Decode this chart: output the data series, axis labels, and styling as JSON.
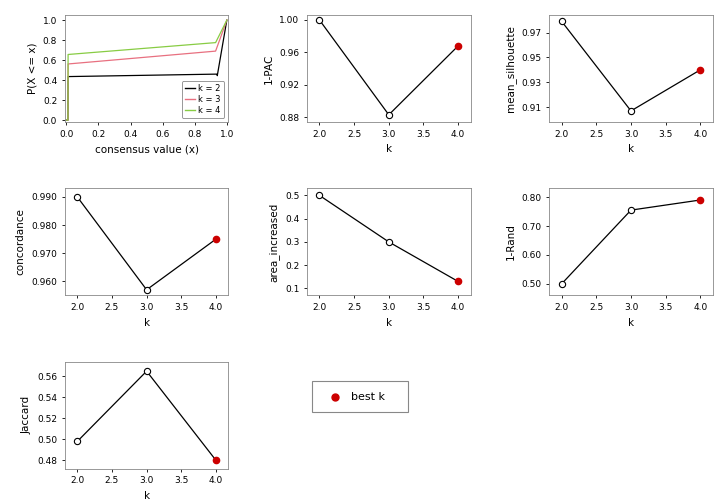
{
  "k_values": [
    2,
    3,
    4
  ],
  "pac_1minus": [
    1.0,
    0.883,
    0.968
  ],
  "mean_silhouette": [
    0.979,
    0.907,
    0.94
  ],
  "concordance": [
    0.99,
    0.957,
    0.975
  ],
  "area_increased": [
    0.5,
    0.3,
    0.13
  ],
  "rand": [
    0.5,
    0.755,
    0.79
  ],
  "jaccard": [
    0.498,
    0.565,
    0.48
  ],
  "best_k": 4,
  "ecdf_colors": [
    "#000000",
    "#e87080",
    "#88cc44"
  ],
  "ecdf_labels": [
    "k = 2",
    "k = 3",
    "k = 4"
  ],
  "open_circle_color": "#ffffff",
  "open_circle_edge": "#000000",
  "filled_circle_color": "#cc0000",
  "line_color": "#000000",
  "background_color": "#ffffff",
  "panel_bg": "#ffffff"
}
